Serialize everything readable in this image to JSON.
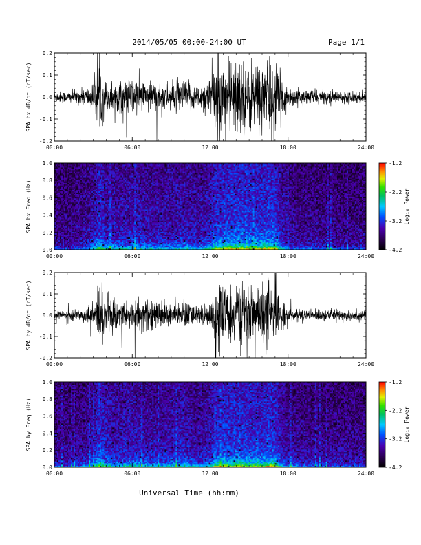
{
  "header": {
    "title": "2014/05/05  00:00-24:00 UT",
    "page": "Page 1/1"
  },
  "x_axis": {
    "label": "Universal Time (hh:mm)",
    "ticks": [
      0,
      6,
      12,
      18,
      24
    ],
    "tick_labels": [
      "00:00",
      "06:00",
      "12:00",
      "18:00",
      "24:00"
    ],
    "range": [
      0,
      24
    ]
  },
  "colorbar": {
    "label": "Log₁₀ Power",
    "ticks": [
      -1.2,
      -2.2,
      -3.2,
      -4.2
    ],
    "tick_labels": [
      "-1.2",
      "-2.2",
      "-3.2",
      "-4.2"
    ],
    "range": [
      -4.2,
      -1.2
    ]
  },
  "chart_data": [
    {
      "type": "line",
      "ylabel": "SPA bx dB/dt (nT/sec)",
      "xlim": [
        0,
        24
      ],
      "ylim": [
        -0.2,
        0.2
      ],
      "yticks": [
        -0.2,
        -0.1,
        0.0,
        0.1,
        0.2
      ],
      "ytick_labels": [
        "-0.2",
        "-0.1",
        "0.0",
        "0.1",
        "0.2"
      ],
      "series": [
        {
          "x": [
            0,
            1,
            2,
            3,
            3.5,
            4,
            5,
            6,
            7,
            8,
            9,
            10,
            11,
            12,
            12.5,
            13,
            14,
            15,
            16,
            16.5,
            17,
            17.5,
            18,
            19,
            20,
            21,
            22,
            23,
            24
          ],
          "envelope": [
            0.03,
            0.03,
            0.04,
            0.07,
            0.16,
            0.09,
            0.08,
            0.1,
            0.09,
            0.08,
            0.07,
            0.09,
            0.06,
            0.1,
            0.2,
            0.18,
            0.2,
            0.2,
            0.17,
            0.2,
            0.19,
            0.1,
            0.05,
            0.04,
            0.04,
            0.03,
            0.03,
            0.03,
            0.03
          ]
        }
      ]
    },
    {
      "type": "heatmap",
      "ylabel": "SPA bx Freq (Hz)",
      "xlim": [
        0,
        24
      ],
      "ylim": [
        0.0,
        1.0
      ],
      "yticks": [
        0.0,
        0.2,
        0.4,
        0.6,
        0.8,
        1.0
      ],
      "ytick_labels": [
        "0.0",
        "0.2",
        "0.4",
        "0.6",
        "0.8",
        "1.0"
      ],
      "zlim": [
        -4.2,
        -1.2
      ],
      "activity": {
        "x": [
          0,
          1,
          2,
          3,
          3.5,
          4,
          5,
          6,
          7,
          8,
          9,
          10,
          11,
          12,
          12.5,
          13,
          14,
          15,
          16,
          16.5,
          17,
          17.5,
          18,
          19,
          20,
          21,
          22,
          23,
          24
        ],
        "level": [
          0.15,
          0.15,
          0.2,
          0.4,
          0.8,
          0.5,
          0.45,
          0.5,
          0.45,
          0.4,
          0.4,
          0.5,
          0.35,
          0.55,
          0.8,
          0.85,
          0.9,
          0.85,
          0.8,
          0.9,
          0.85,
          0.45,
          0.25,
          0.2,
          0.2,
          0.18,
          0.15,
          0.15,
          0.15
        ]
      }
    },
    {
      "type": "line",
      "ylabel": "SPA by dB/dt (nT/sec)",
      "xlim": [
        0,
        24
      ],
      "ylim": [
        -0.2,
        0.2
      ],
      "yticks": [
        -0.2,
        -0.1,
        0.0,
        0.1,
        0.2
      ],
      "ytick_labels": [
        "-0.2",
        "-0.1",
        "0.0",
        "0.1",
        "0.2"
      ],
      "series": [
        {
          "x": [
            0,
            1,
            2,
            3,
            3.5,
            4,
            5,
            6,
            7,
            8,
            9,
            10,
            11,
            12,
            12.5,
            13,
            14,
            15,
            16,
            16.5,
            17,
            17.5,
            18,
            19,
            20,
            21,
            22,
            23,
            24
          ],
          "envelope": [
            0.02,
            0.02,
            0.03,
            0.06,
            0.16,
            0.1,
            0.08,
            0.09,
            0.08,
            0.07,
            0.06,
            0.08,
            0.05,
            0.06,
            0.2,
            0.15,
            0.16,
            0.15,
            0.17,
            0.2,
            0.16,
            0.08,
            0.04,
            0.03,
            0.03,
            0.03,
            0.03,
            0.03,
            0.03
          ]
        }
      ]
    },
    {
      "type": "heatmap",
      "ylabel": "SPA by Freq (Hz)",
      "xlim": [
        0,
        24
      ],
      "ylim": [
        0.0,
        1.0
      ],
      "yticks": [
        0.0,
        0.2,
        0.4,
        0.6,
        0.8,
        1.0
      ],
      "ytick_labels": [
        "0.0",
        "0.2",
        "0.4",
        "0.6",
        "0.8",
        "1.0"
      ],
      "zlim": [
        -4.2,
        -1.2
      ],
      "activity": {
        "x": [
          0,
          1,
          2,
          3,
          3.5,
          4,
          5,
          6,
          7,
          8,
          9,
          10,
          11,
          12,
          12.5,
          13,
          14,
          15,
          16,
          16.5,
          17,
          17.5,
          18,
          19,
          20,
          21,
          22,
          23,
          24
        ],
        "level": [
          0.2,
          0.2,
          0.25,
          0.45,
          0.85,
          0.55,
          0.45,
          0.55,
          0.45,
          0.4,
          0.45,
          0.55,
          0.35,
          0.5,
          0.8,
          0.8,
          0.85,
          0.8,
          0.8,
          0.9,
          0.85,
          0.45,
          0.3,
          0.25,
          0.25,
          0.22,
          0.2,
          0.2,
          0.2
        ]
      }
    }
  ]
}
